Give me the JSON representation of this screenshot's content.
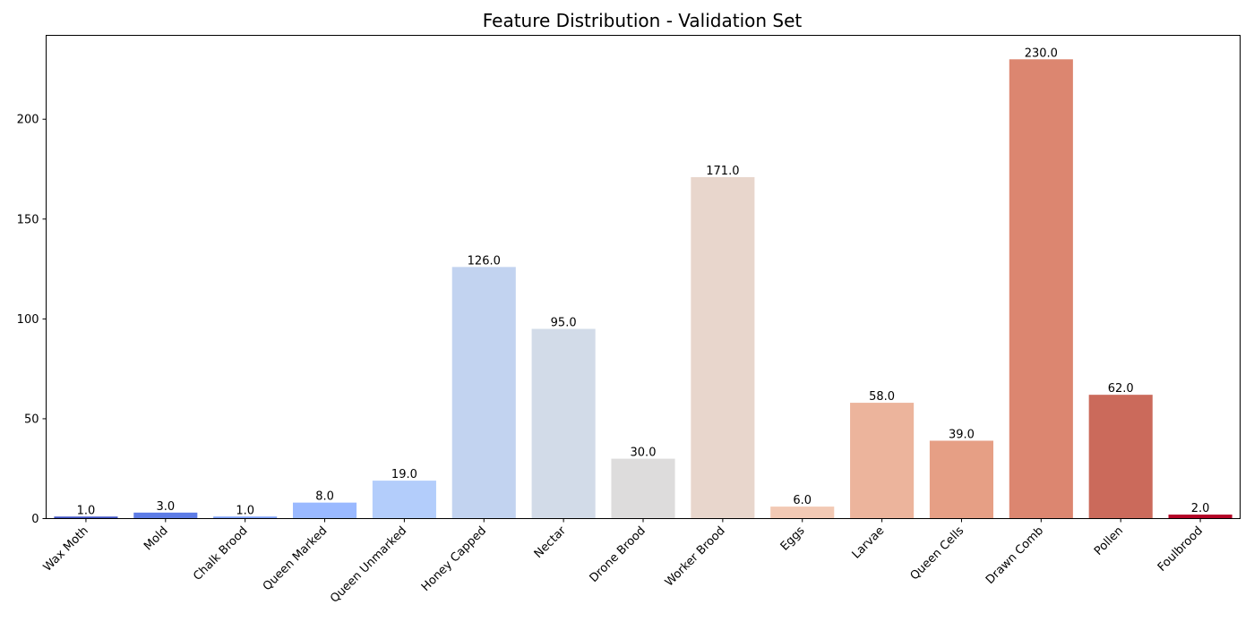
{
  "chart_data": {
    "type": "bar",
    "title": "Feature Distribution - Validation Set",
    "xlabel": "",
    "ylabel": "",
    "categories": [
      "Wax Moth",
      "Mold",
      "Chalk Brood",
      "Queen Marked",
      "Queen Unmarked",
      "Honey Capped",
      "Nectar",
      "Drone Brood",
      "Worker Brood",
      "Eggs",
      "Larvae",
      "Queen Cells",
      "Drawn Comb",
      "Pollen",
      "Foulbrood"
    ],
    "values": [
      1,
      3,
      1,
      8,
      19,
      126,
      95,
      30,
      171,
      6,
      58,
      39,
      230,
      62,
      2
    ],
    "data_labels": [
      "1.0",
      "3.0",
      "1.0",
      "8.0",
      "19.0",
      "126.0",
      "95.0",
      "30.0",
      "171.0",
      "6.0",
      "58.0",
      "39.0",
      "230.0",
      "62.0",
      "2.0"
    ],
    "colors": [
      "#3d51c5",
      "#5d7ce6",
      "#7b9ff9",
      "#9ab9ff",
      "#b3cdfb",
      "#c2d3f0",
      "#d2dbe8",
      "#dddcdc",
      "#e8d6cc",
      "#f2c9b4",
      "#ecb49c",
      "#e69f85",
      "#dc8670",
      "#cb6a5b",
      "#b40426"
    ],
    "ylim": [
      0,
      242
    ],
    "yticks": [
      0,
      50,
      100,
      150,
      200
    ],
    "ytick_labels": [
      "0",
      "50",
      "100",
      "150",
      "200"
    ],
    "grid": false,
    "legend": "none"
  }
}
